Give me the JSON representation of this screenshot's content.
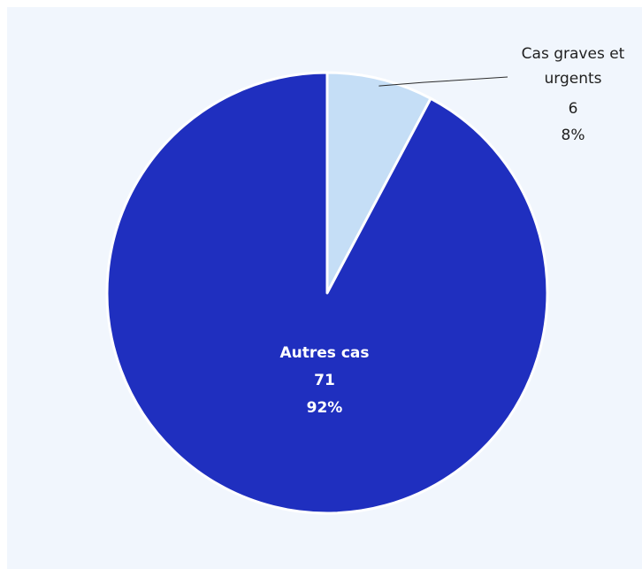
{
  "chart_data": {
    "type": "pie",
    "title": "",
    "slices": [
      {
        "name_lines": [
          "Cas graves et",
          "urgents"
        ],
        "value": 6,
        "percent": "8%",
        "value_label": "6",
        "color": "#c5def6"
      },
      {
        "name_lines": [
          "Autres cas"
        ],
        "value": 71,
        "percent": "92%",
        "value_label": "71",
        "color": "#1f2fbf"
      }
    ],
    "start_angle_deg": 0,
    "direction": "clockwise",
    "slice_border_color": "#ffffff",
    "background_color": "#f1f6fd"
  }
}
